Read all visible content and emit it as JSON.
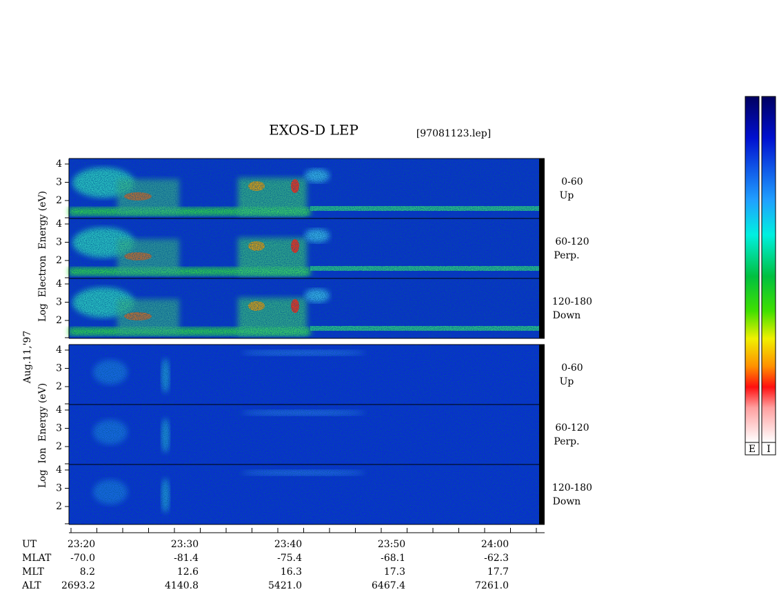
{
  "header": {
    "title": "EXOS-D LEP",
    "file": "[97081123.lep]",
    "date": "Aug.11,'97"
  },
  "electron": {
    "axis_label": "Log  Electron  Energy (eV)",
    "panels": [
      {
        "range": "0-60",
        "direction": "Up"
      },
      {
        "range": "60-120",
        "direction": "Perp."
      },
      {
        "range": "120-180",
        "direction": "Down"
      }
    ],
    "yticks": [
      "2",
      "3",
      "4"
    ]
  },
  "ion": {
    "axis_label": "Log  Ion  Energy (eV)",
    "panels": [
      {
        "range": "0-60",
        "direction": "Up"
      },
      {
        "range": "60-120",
        "direction": "Perp."
      },
      {
        "range": "120-180",
        "direction": "Down"
      }
    ],
    "yticks": [
      "2",
      "3",
      "4"
    ]
  },
  "time_axis": {
    "rows": [
      {
        "name": "UT",
        "values": [
          "23:20",
          "23:30",
          "23:40",
          "23:50",
          "24:00"
        ]
      },
      {
        "name": "MLAT",
        "values": [
          "-70.0",
          "-81.4",
          "-75.4",
          "-68.1",
          "-62.3"
        ]
      },
      {
        "name": "MLT",
        "values": [
          "8.2",
          "12.6",
          "16.3",
          "17.3",
          "17.7"
        ]
      },
      {
        "name": "ALT",
        "values": [
          "2693.2",
          "4140.8",
          "5421.0",
          "6467.4",
          "7261.0"
        ]
      }
    ]
  },
  "colorbars": [
    "E",
    "I"
  ]
}
